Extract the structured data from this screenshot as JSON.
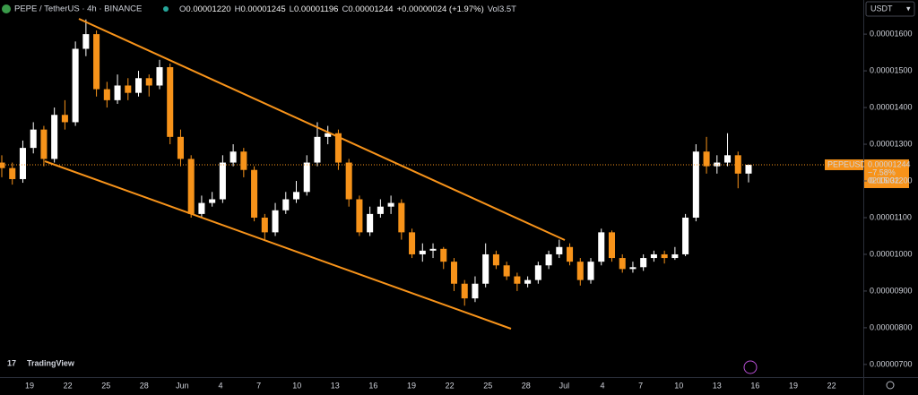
{
  "chart_data": {
    "type": "candlestick",
    "title": "PEPE / TetherUS · 4h · BINANCE",
    "ohlc_header": {
      "o_label": "O",
      "o": "0.00001220",
      "h_label": "H",
      "h": "0.00001245",
      "l_label": "L",
      "l": "0.00001196",
      "c_label": "C",
      "c": "0.00001244",
      "change": "+0.00000024 (+1.97%)",
      "vol_label": "Vol",
      "vol": "3.5T"
    },
    "currency": "USDT",
    "symbol": "PEPEUSDT",
    "last_price": {
      "value": 1.244e-05,
      "label": "0.00001244"
    },
    "change_pct": "−7.58%",
    "countdown": "02:15:32",
    "watermark": "TradingView",
    "up_color": "#ffffff",
    "down_color": "#f7931a",
    "xticks": [
      "19",
      "22",
      "25",
      "28",
      "Jun",
      "4",
      "7",
      "10",
      "13",
      "16",
      "19",
      "22",
      "25",
      "28",
      "Jul",
      "4",
      "7",
      "10",
      "13",
      "16",
      "19",
      "22"
    ],
    "ylim": [
      6.68e-06,
      1.693e-05
    ],
    "yticks": [
      {
        "value": 1.6e-05,
        "label": "0.00001600"
      },
      {
        "value": 1.5e-05,
        "label": "0.00001500"
      },
      {
        "value": 1.4e-05,
        "label": "0.00001400"
      },
      {
        "value": 1.3e-05,
        "label": "0.00001300"
      },
      {
        "value": 1.2e-05,
        "label": "0.00001200"
      },
      {
        "value": 1.1e-05,
        "label": "0.00001100"
      },
      {
        "value": 1e-05,
        "label": "0.00001000"
      },
      {
        "value": 9e-06,
        "label": "0.00000900"
      },
      {
        "value": 8e-06,
        "label": "0.00000800"
      },
      {
        "value": 7e-06,
        "label": "0.00000700"
      }
    ],
    "open": [
      1.25e-05,
      1.235e-05,
      1.205e-05,
      1.29e-05,
      1.34e-05,
      1.26e-05,
      1.38e-05,
      1.36e-05,
      1.56e-05,
      1.6e-05,
      1.45e-05,
      1.42e-05,
      1.46e-05,
      1.44e-05,
      1.48e-05,
      1.46e-05,
      1.51e-05,
      1.32e-05,
      1.26e-05,
      1.11e-05,
      1.14e-05,
      1.15e-05,
      1.25e-05,
      1.28e-05,
      1.23e-05,
      1.1e-05,
      1.06e-05,
      1.12e-05,
      1.15e-05,
      1.17e-05,
      1.25e-05,
      1.32e-05,
      1.33e-05,
      1.25e-05,
      1.15e-05,
      1.06e-05,
      1.11e-05,
      1.13e-05,
      1.14e-05,
      1.06e-05,
      1e-05,
      1.01e-05,
      1.015e-05,
      9.8e-06,
      9.2e-06,
      8.8e-06,
      9.2e-06,
      1e-05,
      9.7e-06,
      9.4e-06,
      9.2e-06,
      9.3e-06,
      9.7e-06,
      1e-05,
      1.02e-05,
      9.8e-06,
      9.3e-06,
      9.8e-06,
      1.06e-05,
      9.9e-06,
      9.6e-06,
      9.65e-06,
      9.9e-06,
      1e-05,
      9.9e-06,
      1e-05,
      1.1e-05,
      1.28e-05,
      1.24e-05,
      1.25e-05,
      1.27e-05,
      1.22e-05
    ],
    "high": [
      1.27e-05,
      1.25e-05,
      1.31e-05,
      1.36e-05,
      1.35e-05,
      1.4e-05,
      1.42e-05,
      1.58e-05,
      1.64e-05,
      1.61e-05,
      1.47e-05,
      1.49e-05,
      1.48e-05,
      1.5e-05,
      1.49e-05,
      1.53e-05,
      1.52e-05,
      1.34e-05,
      1.27e-05,
      1.16e-05,
      1.17e-05,
      1.27e-05,
      1.3e-05,
      1.29e-05,
      1.24e-05,
      1.11e-05,
      1.14e-05,
      1.17e-05,
      1.2e-05,
      1.27e-05,
      1.36e-05,
      1.35e-05,
      1.34e-05,
      1.26e-05,
      1.16e-05,
      1.13e-05,
      1.15e-05,
      1.16e-05,
      1.15e-05,
      1.07e-05,
      1.03e-05,
      1.03e-05,
      1.02e-05,
      9.9e-06,
      9.3e-06,
      9.4e-06,
      1.03e-05,
      1.01e-05,
      9.8e-06,
      9.5e-06,
      9.4e-06,
      9.8e-06,
      1.01e-05,
      1.04e-05,
      1.03e-05,
      9.9e-06,
      9.9e-06,
      1.07e-05,
      1.065e-05,
      1e-05,
      9.8e-06,
      1e-05,
      1.01e-05,
      1.01e-05,
      1.02e-05,
      1.11e-05,
      1.3e-05,
      1.32e-05,
      1.27e-05,
      1.33e-05,
      1.28e-05,
      1.245e-05
    ],
    "low": [
      1.21e-05,
      1.19e-05,
      1.195e-05,
      1.275e-05,
      1.24e-05,
      1.25e-05,
      1.34e-05,
      1.35e-05,
      1.54e-05,
      1.43e-05,
      1.4e-05,
      1.41e-05,
      1.42e-05,
      1.43e-05,
      1.43e-05,
      1.45e-05,
      1.3e-05,
      1.24e-05,
      1.1e-05,
      1.1e-05,
      1.13e-05,
      1.14e-05,
      1.24e-05,
      1.21e-05,
      1.09e-05,
      1.04e-05,
      1.05e-05,
      1.11e-05,
      1.14e-05,
      1.16e-05,
      1.24e-05,
      1.3e-05,
      1.23e-05,
      1.13e-05,
      1.05e-05,
      1.05e-05,
      1.1e-05,
      1.11e-05,
      1.04e-05,
      9.9e-06,
      9.8e-06,
      9.9e-06,
      9.6e-06,
      9e-06,
      8.6e-06,
      8.7e-06,
      9.1e-06,
      9.6e-06,
      9.3e-06,
      9e-06,
      9.1e-06,
      9.2e-06,
      9.6e-06,
      9.9e-06,
      9.7e-06,
      9.15e-06,
      9.2e-06,
      9.7e-06,
      9.8e-06,
      9.5e-06,
      9.5e-06,
      9.55e-06,
      9.8e-06,
      9.75e-06,
      9.85e-06,
      9.95e-06,
      1.09e-05,
      1.22e-05,
      1.22e-05,
      1.24e-05,
      1.18e-05,
      1.196e-05
    ],
    "close": [
      1.235e-05,
      1.205e-05,
      1.29e-05,
      1.34e-05,
      1.26e-05,
      1.38e-05,
      1.36e-05,
      1.56e-05,
      1.6e-05,
      1.45e-05,
      1.42e-05,
      1.46e-05,
      1.44e-05,
      1.48e-05,
      1.46e-05,
      1.51e-05,
      1.32e-05,
      1.26e-05,
      1.11e-05,
      1.14e-05,
      1.15e-05,
      1.25e-05,
      1.28e-05,
      1.23e-05,
      1.1e-05,
      1.06e-05,
      1.12e-05,
      1.15e-05,
      1.17e-05,
      1.25e-05,
      1.32e-05,
      1.33e-05,
      1.25e-05,
      1.15e-05,
      1.06e-05,
      1.11e-05,
      1.13e-05,
      1.14e-05,
      1.06e-05,
      1e-05,
      1.01e-05,
      1.015e-05,
      9.8e-06,
      9.2e-06,
      8.8e-06,
      9.2e-06,
      1e-05,
      9.7e-06,
      9.4e-06,
      9.2e-06,
      9.3e-06,
      9.7e-06,
      1e-05,
      1.02e-05,
      9.8e-06,
      9.3e-06,
      9.8e-06,
      1.06e-05,
      9.9e-06,
      9.6e-06,
      9.65e-06,
      9.9e-06,
      1e-05,
      9.9e-06,
      1e-05,
      1.1e-05,
      1.28e-05,
      1.24e-05,
      1.25e-05,
      1.27e-05,
      1.22e-05,
      1.244e-05
    ]
  }
}
